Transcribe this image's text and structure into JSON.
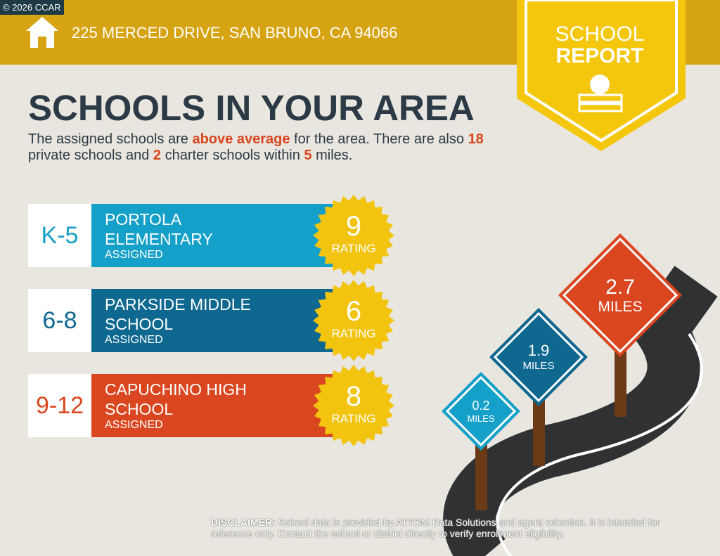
{
  "copyright": "© 2026 CCAR",
  "header": {
    "address": "225 MERCED DRIVE, SAN BRUNO, CA 94066",
    "badge": [
      "SCHOOL",
      "REPORT"
    ]
  },
  "title": "SCHOOLS IN YOUR AREA",
  "summary": [
    {
      "text": "The assigned schools are "
    },
    {
      "text": "above average",
      "highlight": true
    },
    {
      "text": " for the area. There are also "
    },
    {
      "text": 18,
      "highlight": true
    },
    {
      "text": " private schools and "
    },
    {
      "text": 2,
      "highlight": true
    },
    {
      "text": " charter schools within "
    },
    {
      "text": 5,
      "highlight": true
    },
    {
      "text": " miles."
    }
  ],
  "schools": [
    {
      "grades": "K-5",
      "name": "PORTOLA ELEMENTARY",
      "status": "ASSIGNED",
      "rating": 9,
      "rating_label": "RATING",
      "color": "#14a0c8"
    },
    {
      "grades": "6-8",
      "name": "PARKSIDE MIDDLE SCHOOL",
      "status": "ASSIGNED",
      "rating": 6,
      "rating_label": "RATING",
      "color": "#0e6890"
    },
    {
      "grades": "9-12",
      "name": "CAPUCHINO HIGH SCHOOL",
      "status": "ASSIGNED",
      "rating": 8,
      "rating_label": "RATING",
      "color": "#d9461f"
    }
  ],
  "distances": [
    {
      "value": 0.2,
      "unit": "MILES",
      "color": "#14a0c8"
    },
    {
      "value": 1.9,
      "unit": "MILES",
      "color": "#0e6890"
    },
    {
      "value": 2.7,
      "unit": "MILES",
      "color": "#d9461f"
    }
  ],
  "disclaimer": {
    "label": "DISCLAIMER:",
    "text": " School data is provided by ATTOM Data Solutions and agent selection. It is intended for reference only. Contact the school or district directly to verify enrollment eligibility."
  }
}
